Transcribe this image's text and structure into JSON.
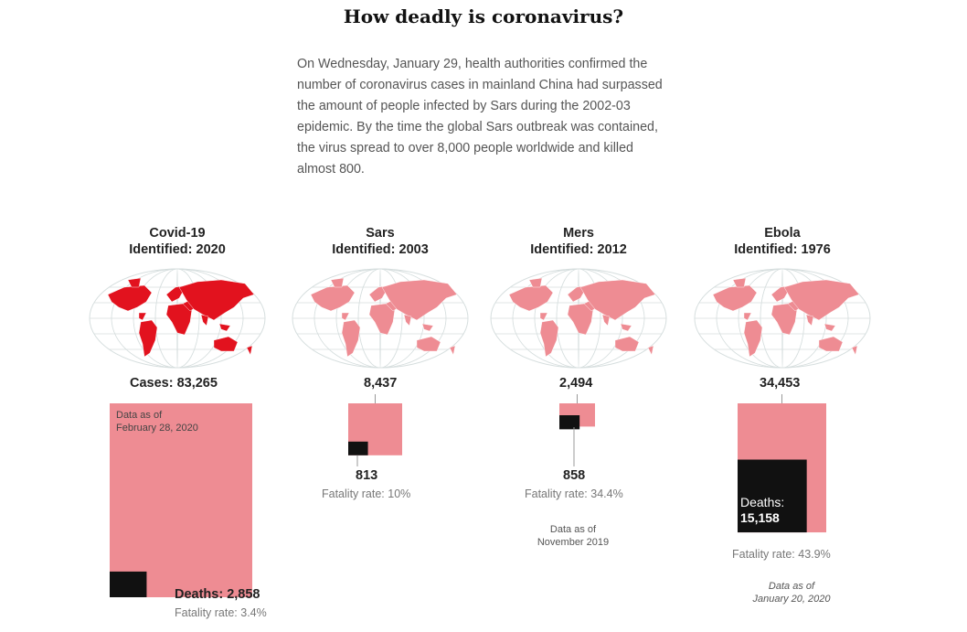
{
  "title": "How deadly is coronavirus?",
  "intro": "On Wednesday, January 29, health authorities confirmed the number of coronavirus cases in mainland China had surpassed the amount of people infected by Sars during the 2002-03 epidemic. By the time the global Sars outbreak was contained, the virus spread to over 8,000 people worldwide and killed almost 800.",
  "colors": {
    "cases": "#ee8c93",
    "deaths": "#111111",
    "covid_map": "#e2121e",
    "other_map": "#ee8c93",
    "map_land": "#ffffff",
    "graticule": "#d6dede"
  },
  "chart_data": {
    "type": "bar",
    "categories": [
      "Covid-19",
      "Sars",
      "Mers",
      "Ebola"
    ],
    "identified": [
      "Identified: 2020",
      "Identified: 2003",
      "Identified: 2012",
      "Identified: 1976"
    ],
    "series": [
      {
        "name": "Cases",
        "values": [
          83265,
          8437,
          2494,
          34453
        ]
      },
      {
        "name": "Deaths",
        "values": [
          2858,
          813,
          858,
          15158
        ]
      }
    ],
    "fatality_rates": [
      3.4,
      10,
      34.4,
      43.9
    ]
  },
  "panels": [
    {
      "name": "Covid-19",
      "identified": "Identified: 2020",
      "cases_label": "Cases: 83,265",
      "deaths_label": "Deaths: 2,858",
      "fatality_label": "Fatality rate: 3.4%",
      "note": "Data as of\nFebruary 28, 2020"
    },
    {
      "name": "Sars",
      "identified": "Identified: 2003",
      "cases_label": "8,437",
      "deaths_label": "813",
      "fatality_label": "Fatality rate: 10%"
    },
    {
      "name": "Mers",
      "identified": "Identified: 2012",
      "cases_label": "2,494",
      "deaths_label": "858",
      "fatality_label": "Fatality rate: 34.4%",
      "note": "Data as of\nNovember 2019"
    },
    {
      "name": "Ebola",
      "identified": "Identified: 1976",
      "cases_label": "34,453",
      "deaths_label_line1": "Deaths:",
      "deaths_label_line2": "15,158",
      "fatality_label": "Fatality rate: 43.9%",
      "note": "Data as of\nJanuary 20, 2020"
    }
  ]
}
